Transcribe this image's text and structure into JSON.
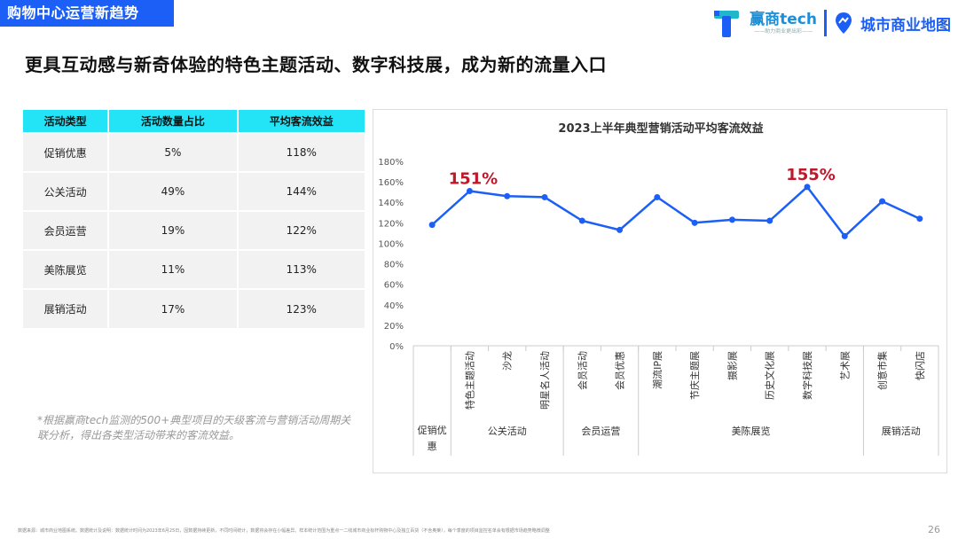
{
  "header": {
    "section_tag": "购物中心运营新趋势",
    "logo1_text": "赢商tech",
    "logo1_sub": "——助力商业更出彩——",
    "logo2_text": "城市商业地图"
  },
  "headline": "更具互动感与新奇体验的特色主题活动、数字科技展，成为新的流量入口",
  "table": {
    "headers": [
      "活动类型",
      "活动数量占比",
      "平均客流效益"
    ],
    "rows": [
      [
        "促销优惠",
        "5%",
        "118%"
      ],
      [
        "公关活动",
        "49%",
        "144%"
      ],
      [
        "会员运营",
        "19%",
        "122%"
      ],
      [
        "美陈展览",
        "11%",
        "113%"
      ],
      [
        "展销活动",
        "17%",
        "123%"
      ]
    ]
  },
  "footnote": "*根据赢商tech监测的500+典型项目的天级客流与营销活动周期关联分析，得出各类型活动带来的客流效益。",
  "chart_data": {
    "type": "line",
    "title": "2023上半年典型营销活动平均客流效益",
    "categories": [
      "",
      "特色主题活动",
      "沙龙",
      "明星名人活动",
      "会员活动",
      "会员优惠",
      "潮流IP展",
      "节庆主题展",
      "摄影展",
      "历史文化展",
      "数字科技展",
      "艺术展",
      "创意市集",
      "快闪店"
    ],
    "groups": [
      {
        "label": "促销优惠",
        "span": 1
      },
      {
        "label": "公关活动",
        "span": 3
      },
      {
        "label": "会员运营",
        "span": 2
      },
      {
        "label": "美陈展览",
        "span": 6
      },
      {
        "label": "展销活动",
        "span": 2
      }
    ],
    "series": [
      {
        "values": [
          118,
          151,
          146,
          145,
          122,
          113,
          145,
          120,
          123,
          122,
          155,
          107,
          141,
          124
        ]
      }
    ],
    "ylim": [
      0,
      180
    ],
    "yticks": [
      0,
      20,
      40,
      60,
      80,
      100,
      120,
      140,
      160,
      180
    ],
    "ytick_labels": [
      "0%",
      "20%",
      "40%",
      "60%",
      "80%",
      "100%",
      "120%",
      "140%",
      "160%",
      "180%"
    ],
    "annotations": [
      {
        "index": 1,
        "text": "151%"
      },
      {
        "index": 10,
        "text": "155%"
      }
    ],
    "line_color": "#1b5ff7",
    "annotation_color": "#c0172b",
    "grid": false
  },
  "source_note": "数据来源：城市商业地图系统。数据统计及说明：数据统计时间为2023年6月25日，因数据持续更新，不同时间统计，数据将会存在小幅差异。样本统计范围为重点一二线城市商业标杆购物中心及独立百货（不含奥莱），每个季度的项目监控名单会有根据市场趋势略微调整",
  "page_number": "26"
}
